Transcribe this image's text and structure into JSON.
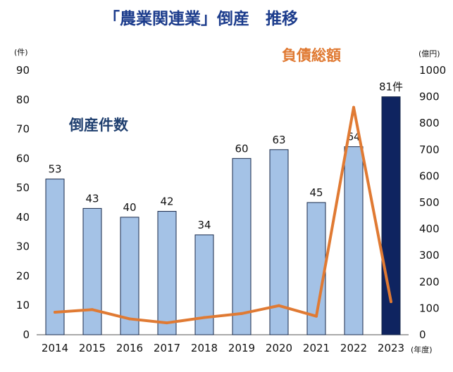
{
  "chart_data": {
    "type": "bar",
    "title": "「農業関連業」倒産　推移",
    "categories": [
      "2014",
      "2015",
      "2016",
      "2017",
      "2018",
      "2019",
      "2020",
      "2021",
      "2022",
      "2023"
    ],
    "x_unit": "(年度)",
    "series": [
      {
        "name": "倒産件数",
        "type": "bar",
        "axis": "left",
        "values": [
          53,
          43,
          40,
          42,
          34,
          60,
          63,
          45,
          64,
          81
        ],
        "data_labels": [
          "53",
          "43",
          "40",
          "42",
          "34",
          "60",
          "63",
          "45",
          "64",
          "81件"
        ],
        "color": "#a4c2e6",
        "highlight_color": "#0f2460",
        "highlight_index": 9
      },
      {
        "name": "負債総額",
        "type": "line",
        "axis": "right",
        "values": [
          85,
          95,
          60,
          45,
          65,
          80,
          110,
          70,
          860,
          125
        ],
        "color": "#e07a33"
      }
    ],
    "y_left": {
      "unit": "(件)",
      "ylim": [
        0,
        90
      ],
      "ticks": [
        0,
        10,
        20,
        30,
        40,
        50,
        60,
        70,
        80,
        90
      ]
    },
    "y_right": {
      "unit": "(億円)",
      "ylim": [
        0,
        1000
      ],
      "ticks": [
        0,
        100,
        200,
        300,
        400,
        500,
        600,
        700,
        800,
        900,
        1000
      ]
    },
    "grid": false,
    "legend": "none"
  }
}
